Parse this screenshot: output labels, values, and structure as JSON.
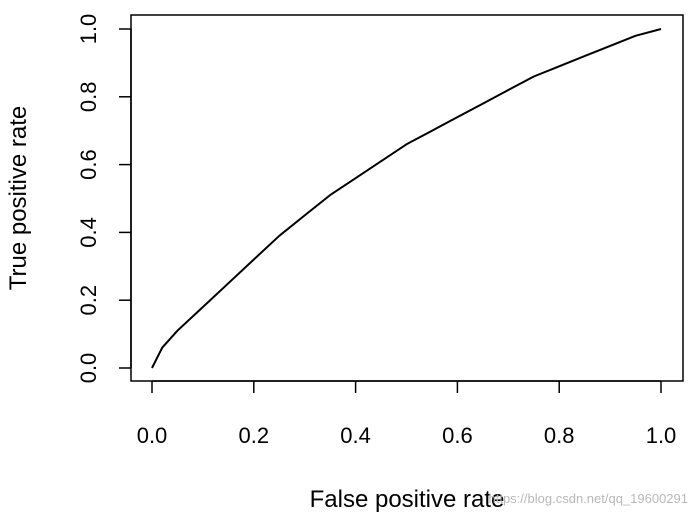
{
  "chart_data": {
    "type": "line",
    "title": "",
    "xlabel": "False positive rate",
    "ylabel": "True positive rate",
    "xlim": [
      0,
      1
    ],
    "ylim": [
      0,
      1
    ],
    "x_ticks": [
      "0.0",
      "0.2",
      "0.4",
      "0.6",
      "0.8",
      "1.0"
    ],
    "y_ticks": [
      "0.0",
      "0.2",
      "0.4",
      "0.6",
      "0.8",
      "1.0"
    ],
    "grid": false,
    "legend": "none",
    "series": [
      {
        "color": "#000000",
        "x": [
          0,
          0.02,
          0.05,
          0.1,
          0.15,
          0.2,
          0.25,
          0.3,
          0.35,
          0.4,
          0.45,
          0.5,
          0.55,
          0.6,
          0.65,
          0.7,
          0.75,
          0.8,
          0.85,
          0.9,
          0.95,
          1.0
        ],
        "y": [
          0,
          0.06,
          0.11,
          0.18,
          0.25,
          0.32,
          0.39,
          0.45,
          0.51,
          0.56,
          0.61,
          0.66,
          0.7,
          0.74,
          0.78,
          0.82,
          0.86,
          0.89,
          0.92,
          0.95,
          0.98,
          1.0
        ]
      }
    ]
  },
  "watermark": "https://blog.csdn.net/qq_19600291"
}
